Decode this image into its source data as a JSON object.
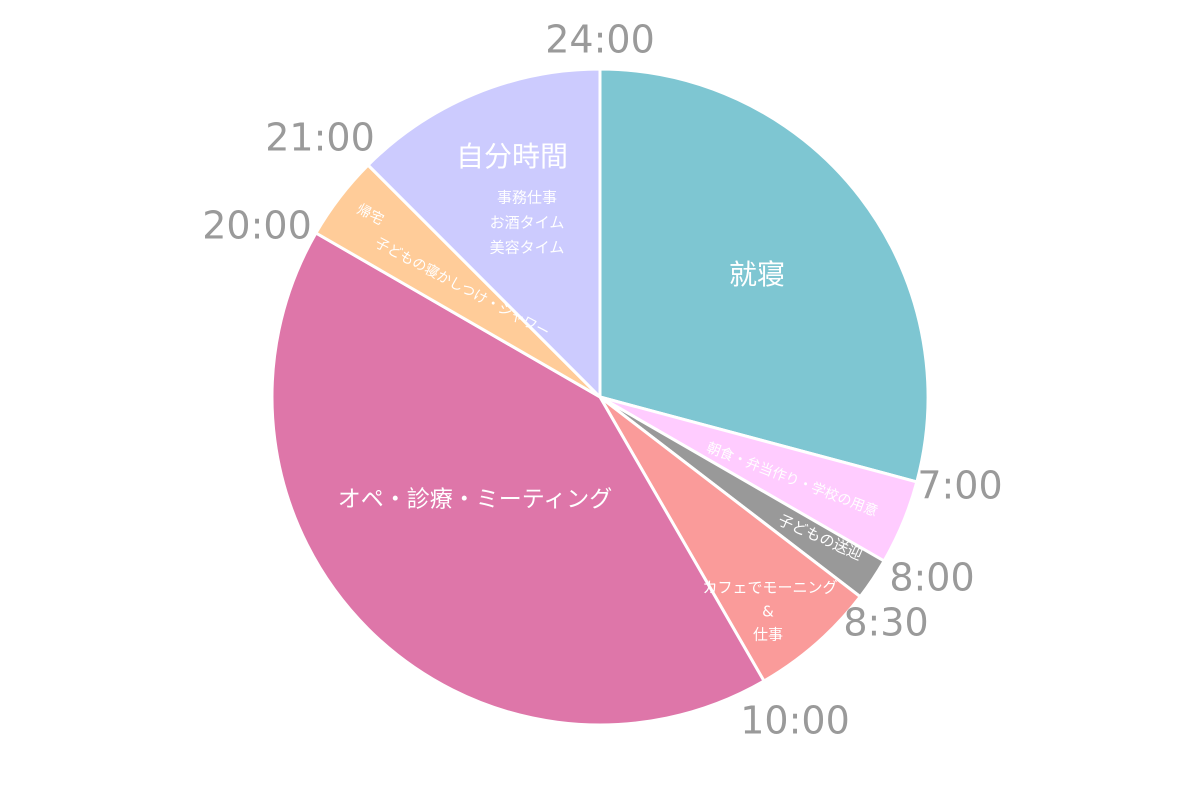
{
  "chart_data": {
    "type": "pie",
    "unit": "hours",
    "slices": [
      {
        "name": "就寝",
        "start": "24:00",
        "end": "7:00",
        "hours": 7,
        "color": "#7ec6d2",
        "label_lines": [
          "就寝"
        ]
      },
      {
        "name": "朝食・弁当作り・学校の用意",
        "start": "7:00",
        "end": "8:00",
        "hours": 1,
        "color": "#ffccff",
        "label_lines": [
          "朝食・弁当作り・学校の用意"
        ]
      },
      {
        "name": "子どもの送迎",
        "start": "8:00",
        "end": "8:30",
        "hours": 0.5,
        "color": "#999999",
        "label_lines": [
          "子どもの送迎"
        ]
      },
      {
        "name": "カフェでモーニング & 仕事",
        "start": "8:30",
        "end": "10:00",
        "hours": 1.5,
        "color": "#fa9b9a",
        "label_lines": [
          "カフェでモーニング",
          "&",
          "仕事"
        ]
      },
      {
        "name": "オペ・診療・ミーティング",
        "start": "10:00",
        "end": "20:00",
        "hours": 10,
        "color": "#de76a9",
        "label_lines": [
          "オペ・診療・ミーティング"
        ]
      },
      {
        "name": "帰宅 子どもの寝かしつけ・シャワー",
        "start": "20:00",
        "end": "21:00",
        "hours": 1,
        "color": "#ffcc99",
        "label_lines": [
          "帰宅",
          "子どもの寝かしつけ・シャワー"
        ]
      },
      {
        "name": "自分時間",
        "start": "21:00",
        "end": "24:00",
        "hours": 3,
        "color": "#cccbfe",
        "label_lines": [
          "自分時間"
        ],
        "sub_lines": [
          "事務仕事",
          "お酒タイム",
          "美容タイム"
        ]
      }
    ],
    "time_labels": [
      "24:00",
      "7:00",
      "8:00",
      "8:30",
      "10:00",
      "20:00",
      "21:00"
    ]
  }
}
